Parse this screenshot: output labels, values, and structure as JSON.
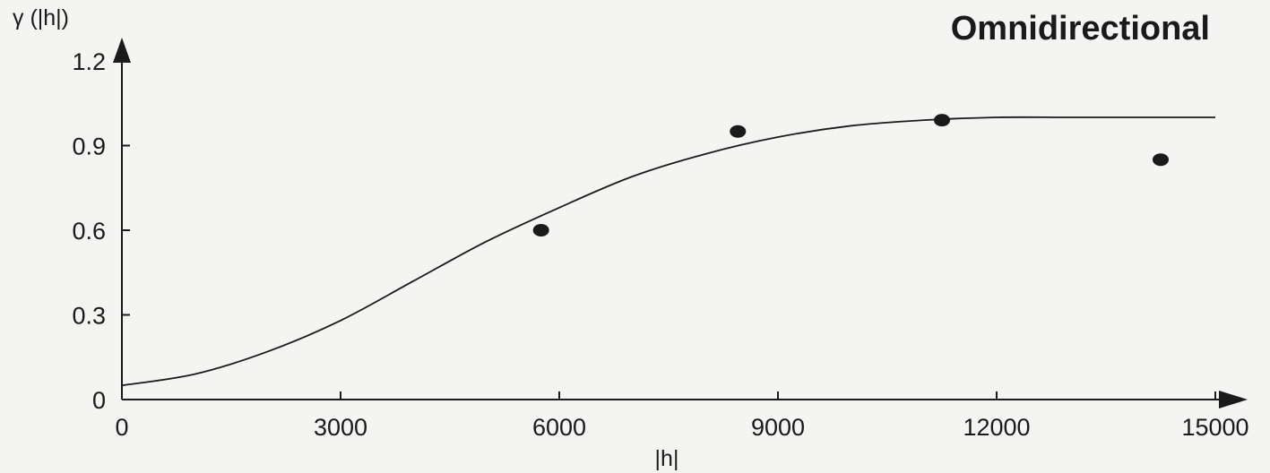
{
  "chart_data": {
    "type": "scatter",
    "title": "Omnidirectional",
    "xlabel": "|h|",
    "ylabel": "γ (|h|)",
    "xlim": [
      0,
      15000
    ],
    "ylim": [
      0,
      1.2
    ],
    "x_ticks": [
      "0",
      "3000",
      "6000",
      "9000",
      "12000",
      "15000"
    ],
    "y_ticks": [
      "0",
      "0.3",
      "0.6",
      "0.9",
      "1.2"
    ],
    "grid": false,
    "legend": "none",
    "series": [
      {
        "kind": "points",
        "x": [
          5750,
          8450,
          11250,
          14250
        ],
        "y": [
          0.6,
          0.95,
          0.99,
          0.85
        ]
      },
      {
        "kind": "line",
        "x": [
          0,
          1000,
          2000,
          3000,
          4000,
          5000,
          6000,
          7000,
          8000,
          9000,
          10000,
          11000,
          12000,
          13000,
          14000,
          15000
        ],
        "y": [
          0.05,
          0.09,
          0.17,
          0.28,
          0.42,
          0.56,
          0.68,
          0.79,
          0.87,
          0.93,
          0.97,
          0.99,
          1.0,
          1.0,
          1.0,
          1.0
        ]
      }
    ],
    "colors": {
      "ink": "#1a1a1a",
      "background": "#f4f4f2"
    }
  }
}
